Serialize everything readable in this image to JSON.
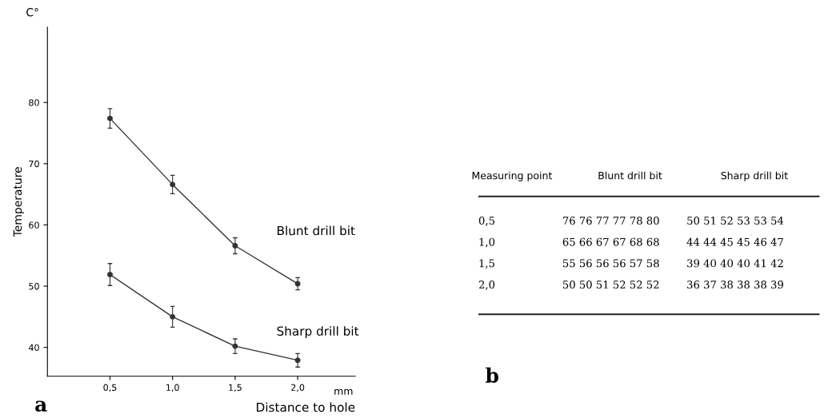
{
  "chart_data": [
    {
      "type": "line",
      "xlabel": "Distance to hole",
      "ylabel": "Temperature",
      "x": [
        0.5,
        1.0,
        1.5,
        2.0
      ],
      "series": [
        {
          "name": "Blunt drill bit",
          "color": "#333333",
          "values": [
            77.4,
            66.6,
            56.6,
            50.4
          ],
          "errors": [
            1.6,
            1.5,
            1.3,
            1.0
          ]
        },
        {
          "name": "Sharp drill bit",
          "color": "#333333",
          "values": [
            51.9,
            45.0,
            40.2,
            37.9
          ],
          "errors": [
            1.8,
            1.7,
            1.2,
            1.1
          ]
        }
      ],
      "xlim": [
        0,
        2.46
      ],
      "xticks": [
        {
          "value": 0.5,
          "label": "0,5"
        },
        {
          "value": 1.0,
          "label": "1,0"
        },
        {
          "value": 1.5,
          "label": "1,5"
        },
        {
          "value": 2.0,
          "label": "2,0"
        }
      ],
      "ylim": [
        35.3,
        92.3
      ],
      "yticks": [
        40,
        50,
        60,
        70,
        80
      ],
      "grid": false,
      "legend": false,
      "marker": "circle",
      "line_style": "solid",
      "annotations": [
        "C°",
        "mm",
        "a"
      ]
    },
    {
      "type": "other",
      "annotations": [
        "Measuring point",
        "Blunt drill bit",
        "Sharp drill bit",
        "0,5",
        "76 76 77 77 78 80",
        "50 51 52 53 53 54",
        "1,0",
        "65 66 67 67 68 68",
        "44 44 45 45 46 47",
        "1,5",
        "55 56 56 56 57 58",
        "39 40 40 40 41 42",
        "2,0",
        "50 50 51 52 52 52",
        "36 37 38 38 38 39",
        "b"
      ]
    }
  ]
}
